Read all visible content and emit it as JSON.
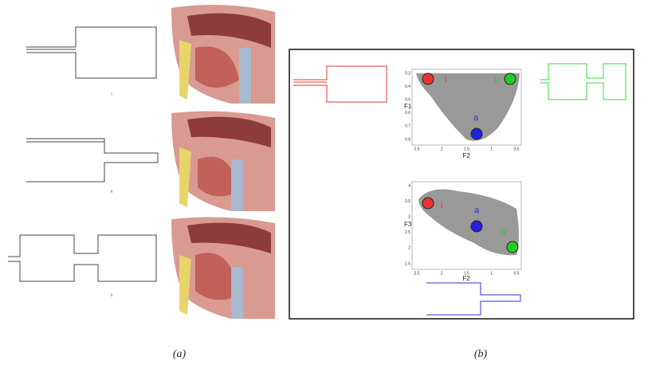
{
  "panels": [
    {
      "caption": "(a)",
      "tube_labels": [
        "i",
        "a",
        "u"
      ]
    },
    {
      "caption": "(b)",
      "plots": [
        {
          "x_label": "F2",
          "y_label": "F1",
          "x_ticks": [
            "2.5",
            "2",
            "1.5",
            "1",
            "0.5"
          ],
          "y_ticks": [
            "0.3",
            "0.4",
            "0.5",
            "0.6",
            "0.7",
            "0.8"
          ],
          "vowels": [
            "i",
            "u",
            "a"
          ]
        },
        {
          "x_label": "F2",
          "y_label": "F3",
          "x_ticks": [
            "2.5",
            "2",
            "1.5",
            "1",
            "0.5"
          ],
          "y_ticks": [
            "4",
            "3.5",
            "3",
            "2.5",
            "2",
            "1.5"
          ],
          "vowels": [
            "i",
            "a",
            "u"
          ]
        }
      ]
    }
  ]
}
